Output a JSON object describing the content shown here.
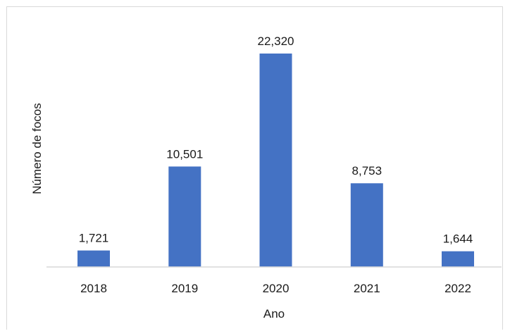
{
  "chart_data": {
    "type": "bar",
    "categories": [
      "2018",
      "2019",
      "2020",
      "2021",
      "2022"
    ],
    "values": [
      1721,
      10501,
      22320,
      8753,
      1644
    ],
    "value_labels": [
      "1,721",
      "10,501",
      "22,320",
      "8,753",
      "1,644"
    ],
    "title": "",
    "xlabel": "Ano",
    "ylabel": "Número de focos",
    "ylim": [
      0,
      24000
    ],
    "grid": false,
    "legend": "none",
    "bar_color": "#4472c4",
    "axis_color": "#d9d9d9"
  }
}
